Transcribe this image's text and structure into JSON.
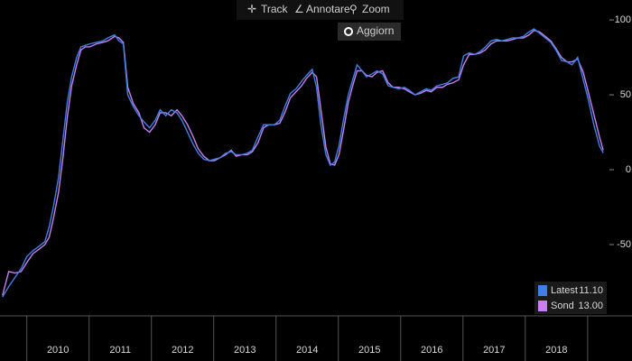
{
  "toolbar": {
    "items": [
      "Track",
      "Annotare",
      "Zoom"
    ],
    "button": "Aggiorn"
  },
  "chart_data": {
    "type": "line",
    "x": [
      2009.61,
      2009.71,
      2009.81,
      2009.91,
      2010.0,
      2010.1,
      2010.2,
      2010.29,
      2010.36,
      2010.43,
      2010.51,
      2010.58,
      2010.65,
      2010.72,
      2010.8,
      2010.87,
      2010.94,
      2011.01,
      2011.12,
      2011.22,
      2011.3,
      2011.41,
      2011.48,
      2011.55,
      2011.62,
      2011.71,
      2011.8,
      2011.88,
      2011.97,
      2012.06,
      2012.14,
      2012.23,
      2012.32,
      2012.41,
      2012.49,
      2012.58,
      2012.67,
      2012.75,
      2012.84,
      2012.93,
      2013.01,
      2013.1,
      2013.19,
      2013.28,
      2013.36,
      2013.45,
      2013.54,
      2013.62,
      2013.71,
      2013.8,
      2013.88,
      2013.97,
      2014.06,
      2014.14,
      2014.23,
      2014.32,
      2014.41,
      2014.49,
      2014.58,
      2014.65,
      2014.72,
      2014.8,
      2014.87,
      2014.94,
      2015.01,
      2015.09,
      2015.16,
      2015.23,
      2015.3,
      2015.38,
      2015.45,
      2015.54,
      2015.62,
      2015.71,
      2015.8,
      2015.88,
      2015.97,
      2016.06,
      2016.14,
      2016.23,
      2016.32,
      2016.41,
      2016.49,
      2016.58,
      2016.67,
      2016.75,
      2016.84,
      2016.93,
      2017.01,
      2017.1,
      2017.19,
      2017.28,
      2017.36,
      2017.45,
      2017.54,
      2017.62,
      2017.71,
      2017.8,
      2017.88,
      2017.97,
      2018.06,
      2018.14,
      2018.23,
      2018.32,
      2018.41,
      2018.49,
      2018.58,
      2018.67,
      2018.75,
      2018.84,
      2018.93,
      2019.01,
      2019.1,
      2019.19,
      2019.25
    ],
    "series": [
      {
        "name": "Latest",
        "color": "#3f7fe6",
        "legend_value": "11.10",
        "values": [
          -85,
          -78,
          -72,
          -66,
          -58,
          -54,
          -51,
          -48,
          -38,
          -24,
          -5,
          20,
          45,
          62,
          75,
          82,
          83,
          84,
          85,
          86,
          88,
          90,
          86,
          84,
          50,
          42,
          36,
          32,
          28,
          33,
          40,
          36,
          40,
          38,
          33,
          25,
          17,
          11,
          7,
          6,
          7,
          8,
          11,
          12,
          10,
          10,
          11,
          13,
          22,
          30,
          30,
          30,
          33,
          42,
          51,
          54,
          59,
          63,
          67,
          55,
          30,
          10,
          3,
          5,
          16,
          35,
          50,
          60,
          70,
          66,
          62,
          64,
          66,
          64,
          56,
          55,
          54,
          55,
          53,
          50,
          52,
          54,
          53,
          56,
          57,
          58,
          61,
          62,
          76,
          78,
          77,
          79,
          82,
          86,
          87,
          86,
          87,
          88,
          88,
          89,
          92,
          94,
          91,
          88,
          85,
          80,
          73,
          72,
          70,
          75,
          60,
          47,
          30,
          16,
          11.1
        ]
      },
      {
        "name": "Sond",
        "color": "#c680f2",
        "legend_value": "13.00",
        "values": [
          -84,
          -68,
          -69,
          -68,
          -62,
          -56,
          -53,
          -50,
          -45,
          -32,
          -15,
          8,
          35,
          56,
          70,
          80,
          82,
          82,
          84,
          85,
          86,
          89,
          88,
          85,
          55,
          44,
          38,
          28,
          25,
          30,
          38,
          38,
          36,
          40,
          36,
          30,
          22,
          14,
          9,
          6,
          6,
          8,
          10,
          13,
          9,
          10,
          10,
          12,
          18,
          28,
          30,
          30,
          31,
          38,
          48,
          52,
          56,
          61,
          65,
          62,
          40,
          15,
          4,
          3,
          10,
          28,
          45,
          56,
          66,
          66,
          63,
          62,
          65,
          66,
          58,
          55,
          55,
          54,
          52,
          50,
          51,
          53,
          52,
          55,
          55,
          57,
          58,
          60,
          70,
          77,
          77,
          78,
          80,
          84,
          86,
          86,
          86,
          87,
          88,
          88,
          90,
          93,
          92,
          89,
          86,
          81,
          75,
          72,
          72,
          74,
          65,
          52,
          37,
          22,
          13
        ]
      }
    ],
    "xlim": [
      2009.57,
      2019.35
    ],
    "xticks": [
      {
        "value": 2010.5,
        "label": "2010"
      },
      {
        "value": 2011.5,
        "label": "2011"
      },
      {
        "value": 2012.5,
        "label": "2012"
      },
      {
        "value": 2013.5,
        "label": "2013"
      },
      {
        "value": 2014.5,
        "label": "2014"
      },
      {
        "value": 2015.5,
        "label": "2015"
      },
      {
        "value": 2016.5,
        "label": "2016"
      },
      {
        "value": 2017.5,
        "label": "2017"
      },
      {
        "value": 2018.5,
        "label": "2018"
      }
    ],
    "ylim": [
      -97.6,
      113.3
    ],
    "yticks": [
      -50,
      0,
      50,
      100
    ],
    "legend": "lower right"
  }
}
